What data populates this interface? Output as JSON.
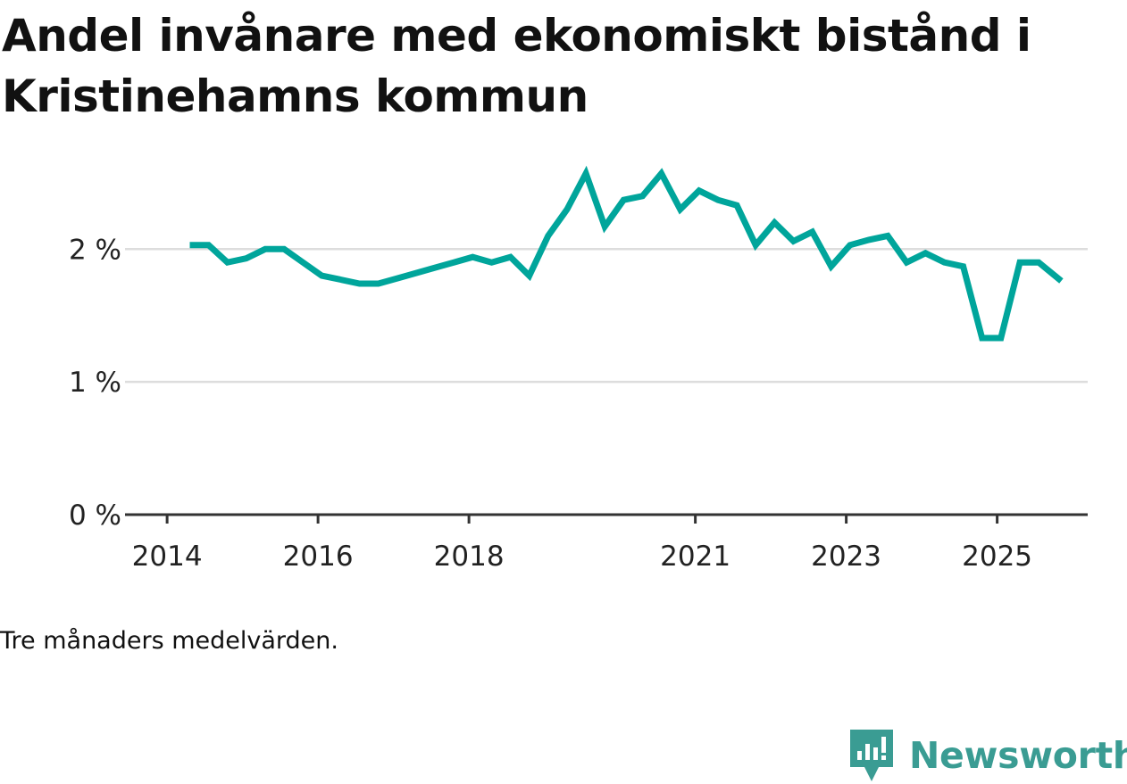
{
  "title": "Andel invånare med ekonomiskt bistånd i Kristinehamns kommun",
  "note": "Tre månaders medelvärden.",
  "brand": {
    "name": "Newsworthy",
    "icon": "newsworthy-logo-icon",
    "color": "#3a9c93"
  },
  "chart_data": {
    "type": "line",
    "title": "Andel invånare med ekonomiskt bistånd i Kristinehamns kommun",
    "xlabel": "",
    "ylabel": "",
    "ylim": [
      0,
      2.6
    ],
    "xlim": [
      2013.75,
      2026.2
    ],
    "grid": true,
    "line_color": "#00a59b",
    "y_ticks": [
      {
        "value": 0,
        "label": "0 %"
      },
      {
        "value": 1,
        "label": "1 %"
      },
      {
        "value": 2,
        "label": "2 %"
      }
    ],
    "x_ticks": [
      {
        "value": 2014,
        "label": "2014"
      },
      {
        "value": 2016,
        "label": "2016"
      },
      {
        "value": 2018,
        "label": "2018"
      },
      {
        "value": 2021,
        "label": "2021"
      },
      {
        "value": 2023,
        "label": "2023"
      },
      {
        "value": 2025,
        "label": "2025"
      }
    ],
    "series": [
      {
        "name": "Andel invånare med ekonomiskt bistånd",
        "x": [
          2014.3,
          2014.55,
          2014.8,
          2015.05,
          2015.3,
          2015.55,
          2015.8,
          2016.05,
          2016.3,
          2016.55,
          2016.8,
          2017.05,
          2017.3,
          2017.55,
          2017.8,
          2018.05,
          2018.3,
          2018.55,
          2018.8,
          2019.05,
          2019.3,
          2019.55,
          2019.8,
          2020.05,
          2020.3,
          2020.55,
          2020.8,
          2021.05,
          2021.3,
          2021.55,
          2021.8,
          2022.05,
          2022.3,
          2022.55,
          2022.8,
          2023.05,
          2023.3,
          2023.55,
          2023.8,
          2024.05,
          2024.3,
          2024.55,
          2024.8,
          2025.05,
          2025.3,
          2025.55,
          2025.85
        ],
        "values": [
          2.03,
          2.03,
          1.9,
          1.93,
          2.0,
          2.0,
          1.9,
          1.8,
          1.77,
          1.74,
          1.74,
          1.78,
          1.82,
          1.86,
          1.9,
          1.94,
          1.9,
          1.94,
          1.8,
          2.1,
          2.3,
          2.57,
          2.17,
          2.37,
          2.4,
          2.57,
          2.3,
          2.44,
          2.37,
          2.33,
          2.03,
          2.2,
          2.06,
          2.13,
          1.87,
          2.03,
          2.07,
          2.1,
          1.9,
          1.97,
          1.9,
          1.87,
          1.33,
          1.33,
          1.9,
          1.9,
          1.76
        ]
      }
    ]
  }
}
